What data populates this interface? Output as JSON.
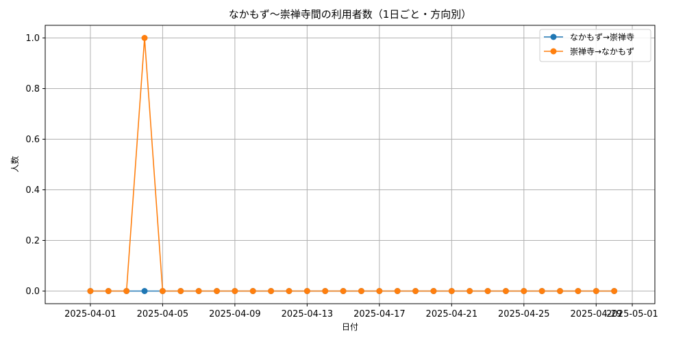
{
  "chart_data": {
    "type": "line",
    "title": "なかもず〜崇禅寺間の利用者数（1日ごと・方向別）",
    "xlabel": "日付",
    "ylabel": "人数",
    "ylim": [
      -0.05,
      1.05
    ],
    "yticks": [
      "0.0",
      "0.2",
      "0.4",
      "0.6",
      "0.8",
      "1.0"
    ],
    "xticks": [
      "2025-04-01",
      "2025-04-05",
      "2025-04-09",
      "2025-04-13",
      "2025-04-17",
      "2025-04-21",
      "2025-04-25",
      "2025-04-29",
      "2025-05-01"
    ],
    "grid": true,
    "legend_position": "top-right",
    "x": [
      "2025-04-01",
      "2025-04-02",
      "2025-04-03",
      "2025-04-04",
      "2025-04-05",
      "2025-04-06",
      "2025-04-07",
      "2025-04-08",
      "2025-04-09",
      "2025-04-10",
      "2025-04-11",
      "2025-04-12",
      "2025-04-13",
      "2025-04-14",
      "2025-04-15",
      "2025-04-16",
      "2025-04-17",
      "2025-04-18",
      "2025-04-19",
      "2025-04-20",
      "2025-04-21",
      "2025-04-22",
      "2025-04-23",
      "2025-04-24",
      "2025-04-25",
      "2025-04-26",
      "2025-04-27",
      "2025-04-28",
      "2025-04-29",
      "2025-04-30"
    ],
    "series": [
      {
        "name": "なかもず→崇禅寺",
        "color": "#1f77b4",
        "values": [
          0,
          0,
          0,
          0,
          0,
          0,
          0,
          0,
          0,
          0,
          0,
          0,
          0,
          0,
          0,
          0,
          0,
          0,
          0,
          0,
          0,
          0,
          0,
          0,
          0,
          0,
          0,
          0,
          0,
          0
        ]
      },
      {
        "name": "崇禅寺→なかもず",
        "color": "#ff7f0e",
        "values": [
          0,
          0,
          0,
          1,
          0,
          0,
          0,
          0,
          0,
          0,
          0,
          0,
          0,
          0,
          0,
          0,
          0,
          0,
          0,
          0,
          0,
          0,
          0,
          0,
          0,
          0,
          0,
          0,
          0,
          0
        ]
      }
    ]
  }
}
